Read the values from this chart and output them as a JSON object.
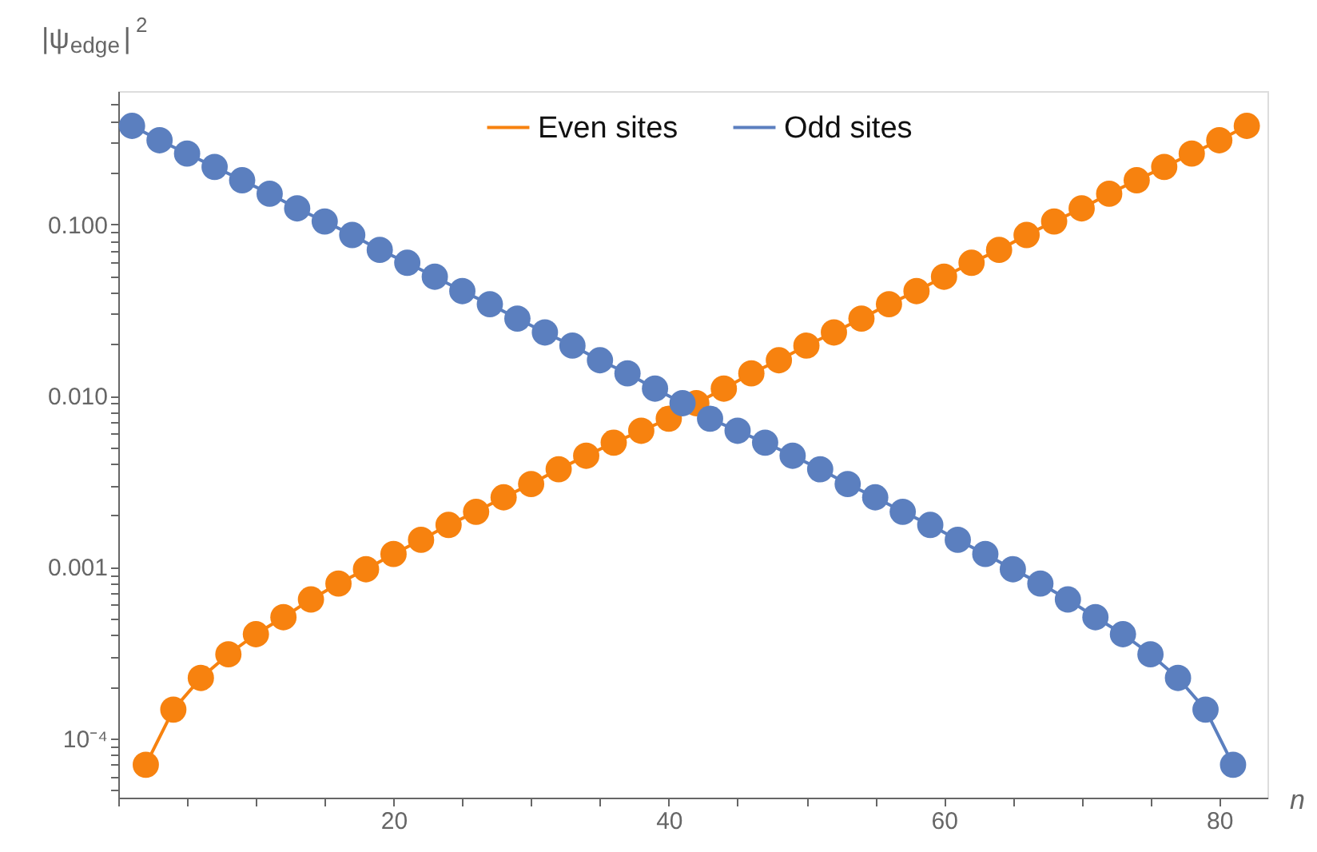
{
  "chart_data": {
    "type": "line",
    "xlabel": "n",
    "ylabel": "|ψ$_{edge}$|$^{2}$",
    "log": "y",
    "xlim": [
      0,
      83.5
    ],
    "ylim": [
      4.5e-05,
      0.6
    ],
    "xticks": [
      {
        "value": 0,
        "label": null
      },
      {
        "value": 5,
        "label": null
      },
      {
        "value": 10,
        "label": null
      },
      {
        "value": 15,
        "label": null
      },
      20,
      {
        "value": 25,
        "label": null
      },
      {
        "value": 30,
        "label": null
      },
      {
        "value": 35,
        "label": null
      },
      40,
      {
        "value": 45,
        "label": null
      },
      {
        "value": 50,
        "label": null
      },
      {
        "value": 55,
        "label": null
      },
      60,
      {
        "value": 65,
        "label": null
      },
      {
        "value": 70,
        "label": null
      },
      {
        "value": 75,
        "label": null
      },
      80
    ],
    "yticks": [
      {
        "value": 5e-05,
        "label": null
      },
      {
        "value": 6e-05,
        "label": null
      },
      {
        "value": 7e-05,
        "label": null
      },
      {
        "value": 8e-05,
        "label": null
      },
      {
        "value": 9e-05,
        "label": null
      },
      {
        "value": 0.0001,
        "label": "10⁻⁴"
      },
      {
        "value": 0.0002,
        "label": null
      },
      {
        "value": 0.0003,
        "label": null
      },
      {
        "value": 0.0004,
        "label": null
      },
      {
        "value": 0.0005,
        "label": null
      },
      {
        "value": 0.0006,
        "label": null
      },
      {
        "value": 0.0007,
        "label": null
      },
      {
        "value": 0.0008,
        "label": null
      },
      {
        "value": 0.0009,
        "label": null
      },
      {
        "value": 0.001,
        "label": "0.001"
      },
      {
        "value": 0.002,
        "label": null
      },
      {
        "value": 0.003,
        "label": null
      },
      {
        "value": 0.004,
        "label": null
      },
      {
        "value": 0.005,
        "label": null
      },
      {
        "value": 0.006,
        "label": null
      },
      {
        "value": 0.007,
        "label": null
      },
      {
        "value": 0.008,
        "label": null
      },
      {
        "value": 0.009,
        "label": null
      },
      {
        "value": 0.01,
        "label": "0.010"
      },
      {
        "value": 0.02,
        "label": null
      },
      {
        "value": 0.03,
        "label": null
      },
      {
        "value": 0.04,
        "label": null
      },
      {
        "value": 0.05,
        "label": null
      },
      {
        "value": 0.06,
        "label": null
      },
      {
        "value": 0.07,
        "label": null
      },
      {
        "value": 0.08,
        "label": null
      },
      {
        "value": 0.09,
        "label": null
      },
      {
        "value": 0.1,
        "label": "0.100"
      },
      {
        "value": 0.2,
        "label": null
      },
      {
        "value": 0.3,
        "label": null
      },
      {
        "value": 0.4,
        "label": null
      },
      {
        "value": 0.5,
        "label": null
      }
    ],
    "grid": false,
    "legend": "top",
    "marker": "circle",
    "line_style": "solid",
    "series": [
      {
        "name": "Even sites",
        "color": "#f7820f",
        "x": [
          2,
          4,
          6,
          8,
          10,
          12,
          14,
          16,
          18,
          20,
          22,
          24,
          26,
          28,
          30,
          32,
          34,
          36,
          38,
          40,
          42,
          44,
          46,
          48,
          50,
          52,
          54,
          56,
          58,
          60,
          62,
          64,
          66,
          68,
          70,
          72,
          74,
          76,
          78,
          80,
          82
        ],
        "values": [
          7e-05,
          0.000147,
          0.000225,
          0.000309,
          0.000405,
          0.000509,
          0.000646,
          0.0008,
          0.00097,
          0.00119,
          0.00144,
          0.00176,
          0.0021,
          0.00255,
          0.00305,
          0.00372,
          0.00446,
          0.00532,
          0.00624,
          0.00734,
          0.00904,
          0.011,
          0.0135,
          0.0161,
          0.0196,
          0.0234,
          0.0282,
          0.0342,
          0.0408,
          0.0495,
          0.0597,
          0.071,
          0.0867,
          0.104,
          0.124,
          0.151,
          0.181,
          0.2165,
          0.259,
          0.31,
          0.376
        ]
      },
      {
        "name": "Odd sites",
        "color": "#5b7fbf",
        "x": [
          1,
          3,
          5,
          7,
          9,
          11,
          13,
          15,
          17,
          19,
          21,
          23,
          25,
          27,
          29,
          31,
          33,
          35,
          37,
          39,
          41,
          43,
          45,
          47,
          49,
          51,
          53,
          55,
          57,
          59,
          61,
          63,
          65,
          67,
          69,
          71,
          73,
          75,
          77,
          79,
          81
        ],
        "values": [
          0.376,
          0.31,
          0.259,
          0.2165,
          0.181,
          0.151,
          0.124,
          0.104,
          0.0867,
          0.071,
          0.0597,
          0.0495,
          0.0408,
          0.0342,
          0.0282,
          0.0234,
          0.0196,
          0.0161,
          0.0135,
          0.011,
          0.00904,
          0.00734,
          0.00624,
          0.00532,
          0.00446,
          0.00372,
          0.00305,
          0.00255,
          0.0021,
          0.00176,
          0.00144,
          0.00119,
          0.00097,
          0.0008,
          0.000646,
          0.000509,
          0.000405,
          0.000309,
          0.000225,
          0.000147,
          7e-05
        ]
      }
    ]
  }
}
